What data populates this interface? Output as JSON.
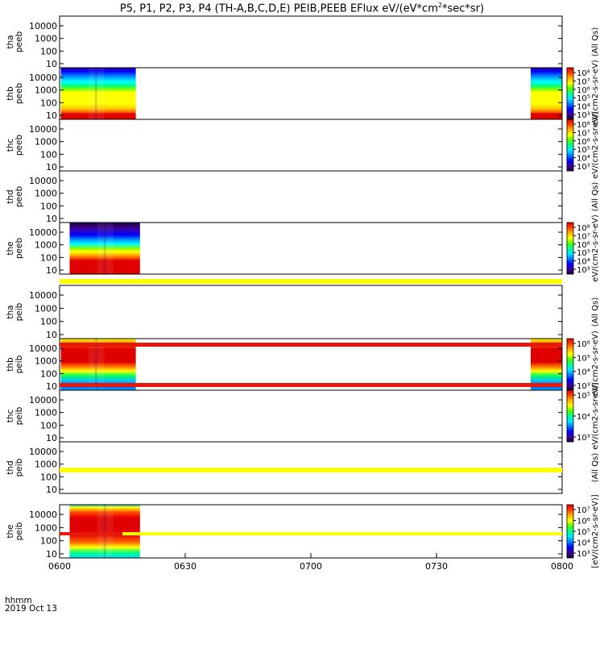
{
  "title": "P5, P1, P2, P3, P4 (TH-A,B,C,D,E) PEIB,PEEB EFlux eV/(eV*cm²*sec*sr)",
  "title_parts": {
    "main": "P5, P1, P2, P3, P4 (TH-A,B,C,D,E) PEIB,PEEB EFlux eV/(eV*cm",
    "sup": "2",
    "tail": "*sec*sr)"
  },
  "time_axis": {
    "unit_label": "hhmm",
    "date_label": "2019 Oct 13",
    "ticks": [
      "0600",
      "0630",
      "0700",
      "0730",
      "0800"
    ],
    "range_minutes": [
      0,
      120
    ]
  },
  "colors": {
    "red": "#e8170c",
    "yellow": "#ffff00",
    "colormap": [
      "#200038",
      "#3c00a0",
      "#0000ff",
      "#0080ff",
      "#00e8ff",
      "#00ff90",
      "#50ff00",
      "#ffff00",
      "#ffb000",
      "#ff4000",
      "#e00000"
    ]
  },
  "chart_data": {
    "type": "heatmap",
    "x_unit": "minutes after 0600 UT",
    "y_scale": "log",
    "y_ticks": [
      "10",
      "100",
      "1000",
      "10000"
    ],
    "panels": [
      {
        "probe": "tha",
        "product": "peeb",
        "y_label": "tha\npeeb",
        "data_segments": [],
        "cbar": null,
        "side_label": "(All Qs)"
      },
      {
        "probe": "thb",
        "product": "peeb",
        "y_label": "thb\npeeb",
        "data_segments": [
          {
            "start": 0.3,
            "end": 18.2,
            "profile": "peeb_full"
          },
          {
            "start": 112.5,
            "end": 120,
            "profile": "peeb_full"
          }
        ],
        "cbar": {
          "ticks": [
            "10³",
            "10⁴",
            "10⁵",
            "10⁶",
            "10⁷",
            "10⁸"
          ]
        },
        "side_label": "eV/(cm2-s-sr-eV)"
      },
      {
        "probe": "thc",
        "product": "peeb",
        "y_label": "thc\npeeb",
        "data_segments": [],
        "cbar": {
          "ticks": [
            "10³",
            "10⁴",
            "10⁵",
            "10⁶",
            "10⁷",
            "10⁸"
          ]
        },
        "side_label": "eV/(cm2-s-sr-eV)"
      },
      {
        "probe": "thd",
        "product": "peeb",
        "y_label": "thd\npeeb",
        "data_segments": [],
        "cbar": null,
        "side_label": "(All Qs)"
      },
      {
        "probe": "the",
        "product": "peeb",
        "y_label": "the\npeeb",
        "data_segments": [
          {
            "start": 2.4,
            "end": 19.2,
            "profile": "peeb_e"
          }
        ],
        "cbar": {
          "ticks": [
            "10³",
            "10⁴",
            "10⁵",
            "10⁶",
            "10⁷",
            "10⁸"
          ]
        },
        "side_label": "eV/(cm2-s-sr-eV)"
      },
      {
        "probe": "tha",
        "product": "peib",
        "y_label": "tha\npeib",
        "data_segments": [],
        "cbar": null,
        "side_label": "(All Qs)"
      },
      {
        "probe": "thb",
        "product": "peib",
        "y_label": "thb\npeib",
        "data_segments": [
          {
            "start": 0.3,
            "end": 18.2,
            "profile": "peib_full"
          },
          {
            "start": 112.5,
            "end": 120,
            "profile": "peib_full"
          }
        ],
        "cbar": {
          "ticks": [
            "10³",
            "10⁴",
            "10⁵",
            "10⁶"
          ]
        },
        "side_label": "eV/(cm2-s-sr-eV)"
      },
      {
        "probe": "thc",
        "product": "peib",
        "y_label": "thc\npeib",
        "data_segments": [],
        "cbar": {
          "ticks": [
            "10³",
            "10⁴",
            "10⁵"
          ]
        },
        "side_label": "eV/(cm2-s-sr-eV)"
      },
      {
        "probe": "thd",
        "product": "peib",
        "y_label": "thd\npeib",
        "data_segments": [],
        "cbar": null,
        "side_label": "(All Qs)"
      },
      {
        "probe": "the",
        "product": "peib",
        "y_label": "the\npeib",
        "data_segments": [
          {
            "start": 2.4,
            "end": 19.2,
            "profile": "peib_e"
          }
        ],
        "cbar": {
          "ticks": [
            "10³",
            "10⁴",
            "10⁵",
            "10⁶",
            "10⁷"
          ]
        },
        "side_label": "[eV/(cm2-s-sr-eV)]"
      }
    ],
    "quality_bars": [
      {
        "segments": [
          {
            "start": 0,
            "end": 120,
            "color": "yellow"
          }
        ]
      },
      {
        "segments": [
          {
            "start": 0,
            "end": 120,
            "color": "red"
          }
        ]
      },
      {
        "segments": [
          {
            "start": 0,
            "end": 120,
            "color": "red"
          }
        ]
      },
      {
        "segments": [
          {
            "start": 0,
            "end": 120,
            "color": "yellow"
          }
        ]
      },
      {
        "segments": [
          {
            "start": 0,
            "end": 15,
            "color": "red"
          },
          {
            "start": 15,
            "end": 120,
            "color": "yellow"
          }
        ]
      }
    ]
  }
}
